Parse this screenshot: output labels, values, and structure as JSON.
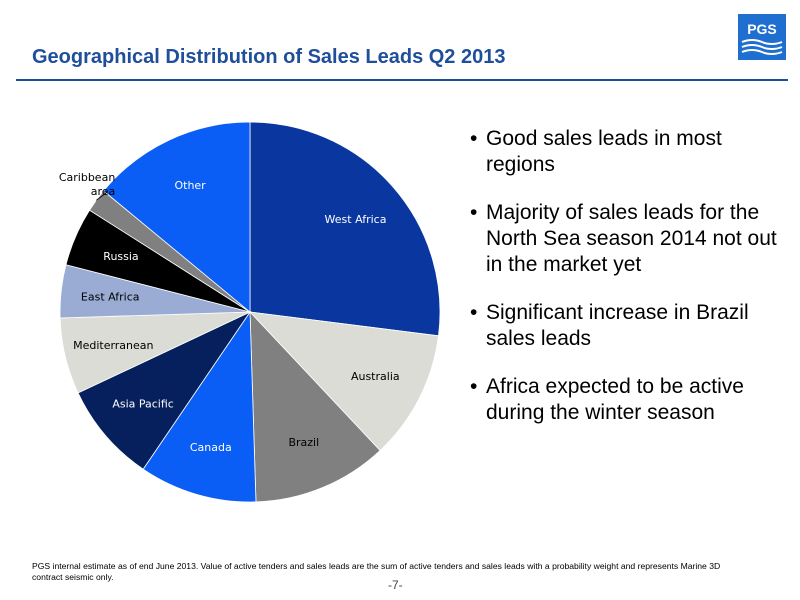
{
  "slide": {
    "title": "Geographical Distribution of Sales Leads Q2 2013",
    "logo_text": "PGS",
    "footnote": "PGS internal estimate as of end June 2013. Value of active tenders and sales leads are the sum of active tenders and sales leads with a probability weight and represents Marine 3D contract seismic only.",
    "page_number": "-7-"
  },
  "bullets": [
    {
      "mark": "•",
      "text": "Good sales leads in most regions"
    },
    {
      "mark": "•",
      "text": "Majority of sales leads for the North Sea season 2014 not out in the market yet"
    },
    {
      "mark": "•",
      "text": "Significant increase in Brazil sales leads"
    },
    {
      "mark": "•",
      "text": "Africa expected to be active during the winter season"
    }
  ],
  "chart_data": {
    "type": "pie",
    "title": "",
    "start": "12 o'clock",
    "direction": "clockwise",
    "legend": "none",
    "categories": [
      "West Africa",
      "Australia",
      "Brazil",
      "Canada",
      "Asia Pacific",
      "Mediterranean",
      "East Africa",
      "Russia",
      "Caribbean area",
      "Other"
    ],
    "values": [
      27.0,
      11.0,
      11.5,
      10.0,
      8.5,
      6.5,
      4.5,
      5.0,
      2.0,
      14.0
    ],
    "colors": [
      "#0a36a0",
      "#dcdcd6",
      "#808080",
      "#0a5ef5",
      "#05205c",
      "#dcdcd6",
      "#9aacd4",
      "#000000",
      "#808080",
      "#0a5ef5"
    ],
    "label_colors": [
      "#ffffff",
      "#000000",
      "#000000",
      "#ffffff",
      "#ffffff",
      "#000000",
      "#000000",
      "#ffffff",
      "#000000",
      "#ffffff"
    ],
    "label_lines": [
      [
        "West Africa"
      ],
      [
        "Australia"
      ],
      [
        "Brazil"
      ],
      [
        "Canada"
      ],
      [
        "Asia Pacific"
      ],
      [
        "Mediterranean"
      ],
      [
        "East Africa"
      ],
      [
        "Russia"
      ],
      [
        "Caribbean",
        "area"
      ],
      [
        "Other"
      ]
    ]
  }
}
